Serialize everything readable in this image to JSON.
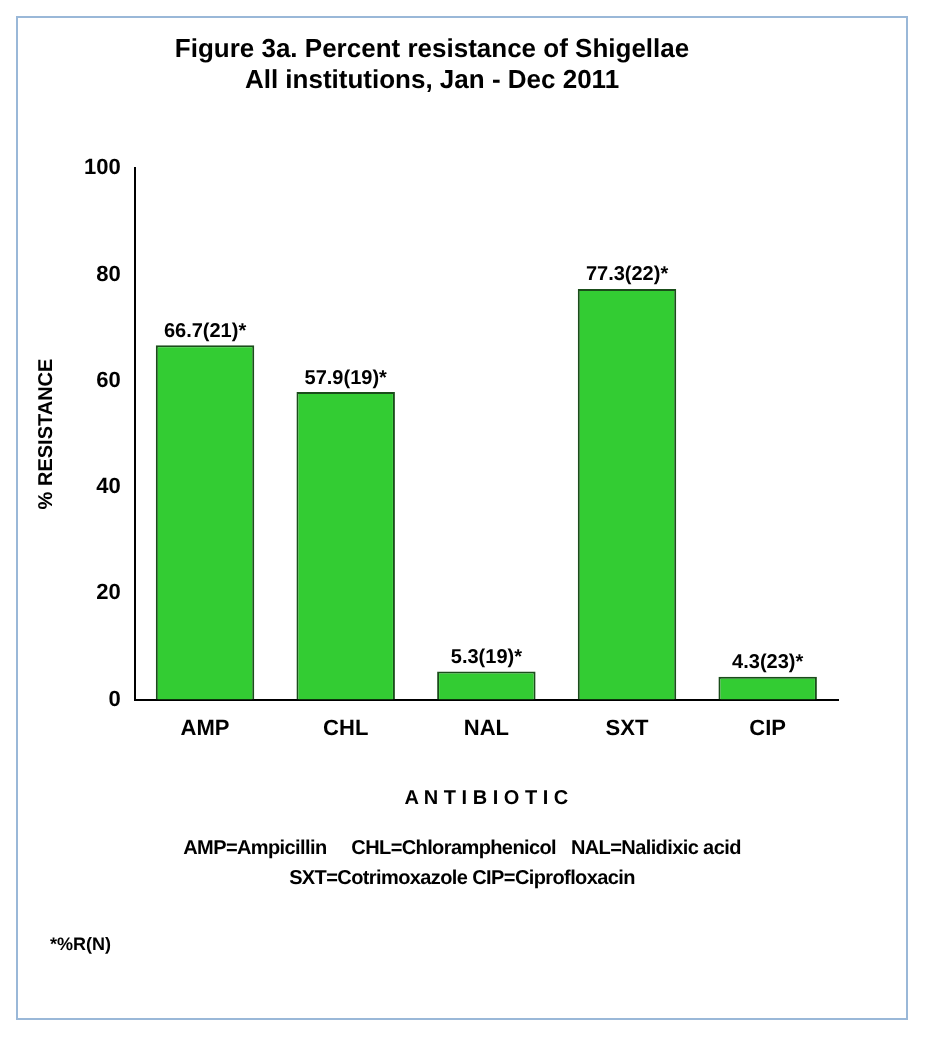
{
  "chart_data": {
    "type": "bar",
    "title": "Figure 3a. Percent resistance of Shigellae",
    "subtitle": "All institutions, Jan - Dec 2011",
    "xlabel": "A N T I B I O T I C",
    "ylabel": "% RESISTANCE",
    "categories": [
      "AMP",
      "CHL",
      "NAL",
      "SXT",
      "CIP"
    ],
    "values": [
      66.7,
      57.9,
      5.3,
      77.3,
      4.3
    ],
    "value_labels": [
      "66.7(21)*",
      "57.9(19)*",
      "5.3(19)*",
      "77.3(22)*",
      "4.3(23)*"
    ],
    "color": "#33cc33",
    "ylim": [
      0,
      100
    ],
    "yticks": [
      0,
      20,
      40,
      60,
      80,
      100
    ],
    "grid": false,
    "legend": false,
    "annotations": [
      "AMP=Ampicillin     CHL=Chloramphenicol   NAL=Nalidixic acid",
      "SXT=Cotrimoxazole CIP=Ciprofloxacin",
      "*%R(N)"
    ]
  }
}
